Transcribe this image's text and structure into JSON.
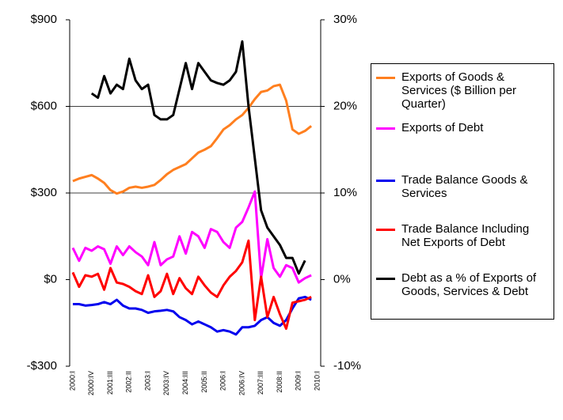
{
  "chart_data": {
    "type": "line",
    "categories": [
      "2000:I",
      null,
      null,
      "2000:IV",
      null,
      null,
      "2001:III",
      null,
      null,
      "2002:II",
      null,
      null,
      "2003:I",
      null,
      null,
      "2003:IV",
      null,
      null,
      "2004:III",
      null,
      null,
      "2005:II",
      null,
      null,
      "2006:I",
      null,
      null,
      "2006:IV",
      null,
      null,
      "2007:III",
      null,
      null,
      "2008:II",
      null,
      null,
      "2009:I",
      null,
      null,
      "2010:I"
    ],
    "ylim": [
      -300,
      900
    ],
    "yticks": [
      {
        "value": -300,
        "label": "-$300"
      },
      {
        "value": 0,
        "label": "$0"
      },
      {
        "value": 300,
        "label": "$300"
      },
      {
        "value": 600,
        "label": "$600"
      },
      {
        "value": 900,
        "label": "$900"
      }
    ],
    "y2lim": [
      -10,
      30
    ],
    "y2ticks": [
      {
        "value": -10,
        "label": "-10%"
      },
      {
        "value": 0,
        "label": "0%"
      },
      {
        "value": 10,
        "label": "10%"
      },
      {
        "value": 20,
        "label": "20%"
      },
      {
        "value": 30,
        "label": "30%"
      }
    ],
    "grid_values": [
      300,
      600
    ],
    "series": [
      {
        "name": "Exports of Goods & Services ($ Billion per Quarter)",
        "color": "#ff7f1f",
        "values": [
          341,
          350,
          356,
          362,
          350,
          335,
          310,
          298,
          305,
          318,
          322,
          318,
          322,
          328,
          345,
          365,
          380,
          390,
          400,
          420,
          440,
          450,
          462,
          490,
          520,
          535,
          555,
          570,
          595,
          625,
          650,
          655,
          670,
          675,
          620,
          520,
          505,
          515,
          532,
          null
        ]
      },
      {
        "name": "Exports of Debt",
        "color": "#ff00ff",
        "values": [
          110,
          65,
          110,
          100,
          115,
          105,
          55,
          115,
          85,
          115,
          95,
          80,
          50,
          130,
          50,
          70,
          80,
          150,
          90,
          165,
          150,
          110,
          175,
          165,
          130,
          110,
          180,
          200,
          250,
          305,
          5,
          140,
          40,
          10,
          50,
          40,
          -10,
          5,
          15,
          null
        ]
      },
      {
        "name": "Trade Balance Goods & Services",
        "color": "#0000ee",
        "values": [
          -85,
          -85,
          -90,
          -88,
          -85,
          -78,
          -85,
          -70,
          -90,
          -100,
          -100,
          -105,
          -115,
          -110,
          -108,
          -105,
          -110,
          -130,
          -140,
          -155,
          -145,
          -155,
          -165,
          -180,
          -175,
          -180,
          -190,
          -165,
          -165,
          -160,
          -140,
          -130,
          -150,
          -160,
          -140,
          -100,
          -65,
          -60,
          -70,
          null
        ]
      },
      {
        "name": "Trade Balance Including Net Exports of Debt",
        "color": "#ff0000",
        "values": [
          25,
          -25,
          15,
          10,
          20,
          -35,
          40,
          -10,
          -15,
          -25,
          -40,
          -50,
          15,
          -60,
          -40,
          20,
          -50,
          5,
          -30,
          -50,
          10,
          -20,
          -45,
          -60,
          -20,
          10,
          30,
          60,
          135,
          -140,
          10,
          -130,
          -60,
          -120,
          -170,
          -80,
          -75,
          -70,
          -60,
          null
        ]
      },
      {
        "name": "Debt as a % of Exports of Goods, Services & Debt",
        "color": "#000000",
        "axis": "y2",
        "values": [
          null,
          null,
          null,
          21.5,
          21,
          23.5,
          21.5,
          22.5,
          22,
          25.5,
          23,
          22,
          22.5,
          19,
          18.5,
          18.5,
          19,
          22,
          25,
          22,
          25,
          24,
          23,
          22.7,
          22.5,
          23,
          24,
          27.5,
          20,
          14,
          8,
          6,
          5,
          4,
          2.5,
          2.5,
          0.7,
          2.2,
          null,
          null
        ]
      }
    ]
  }
}
